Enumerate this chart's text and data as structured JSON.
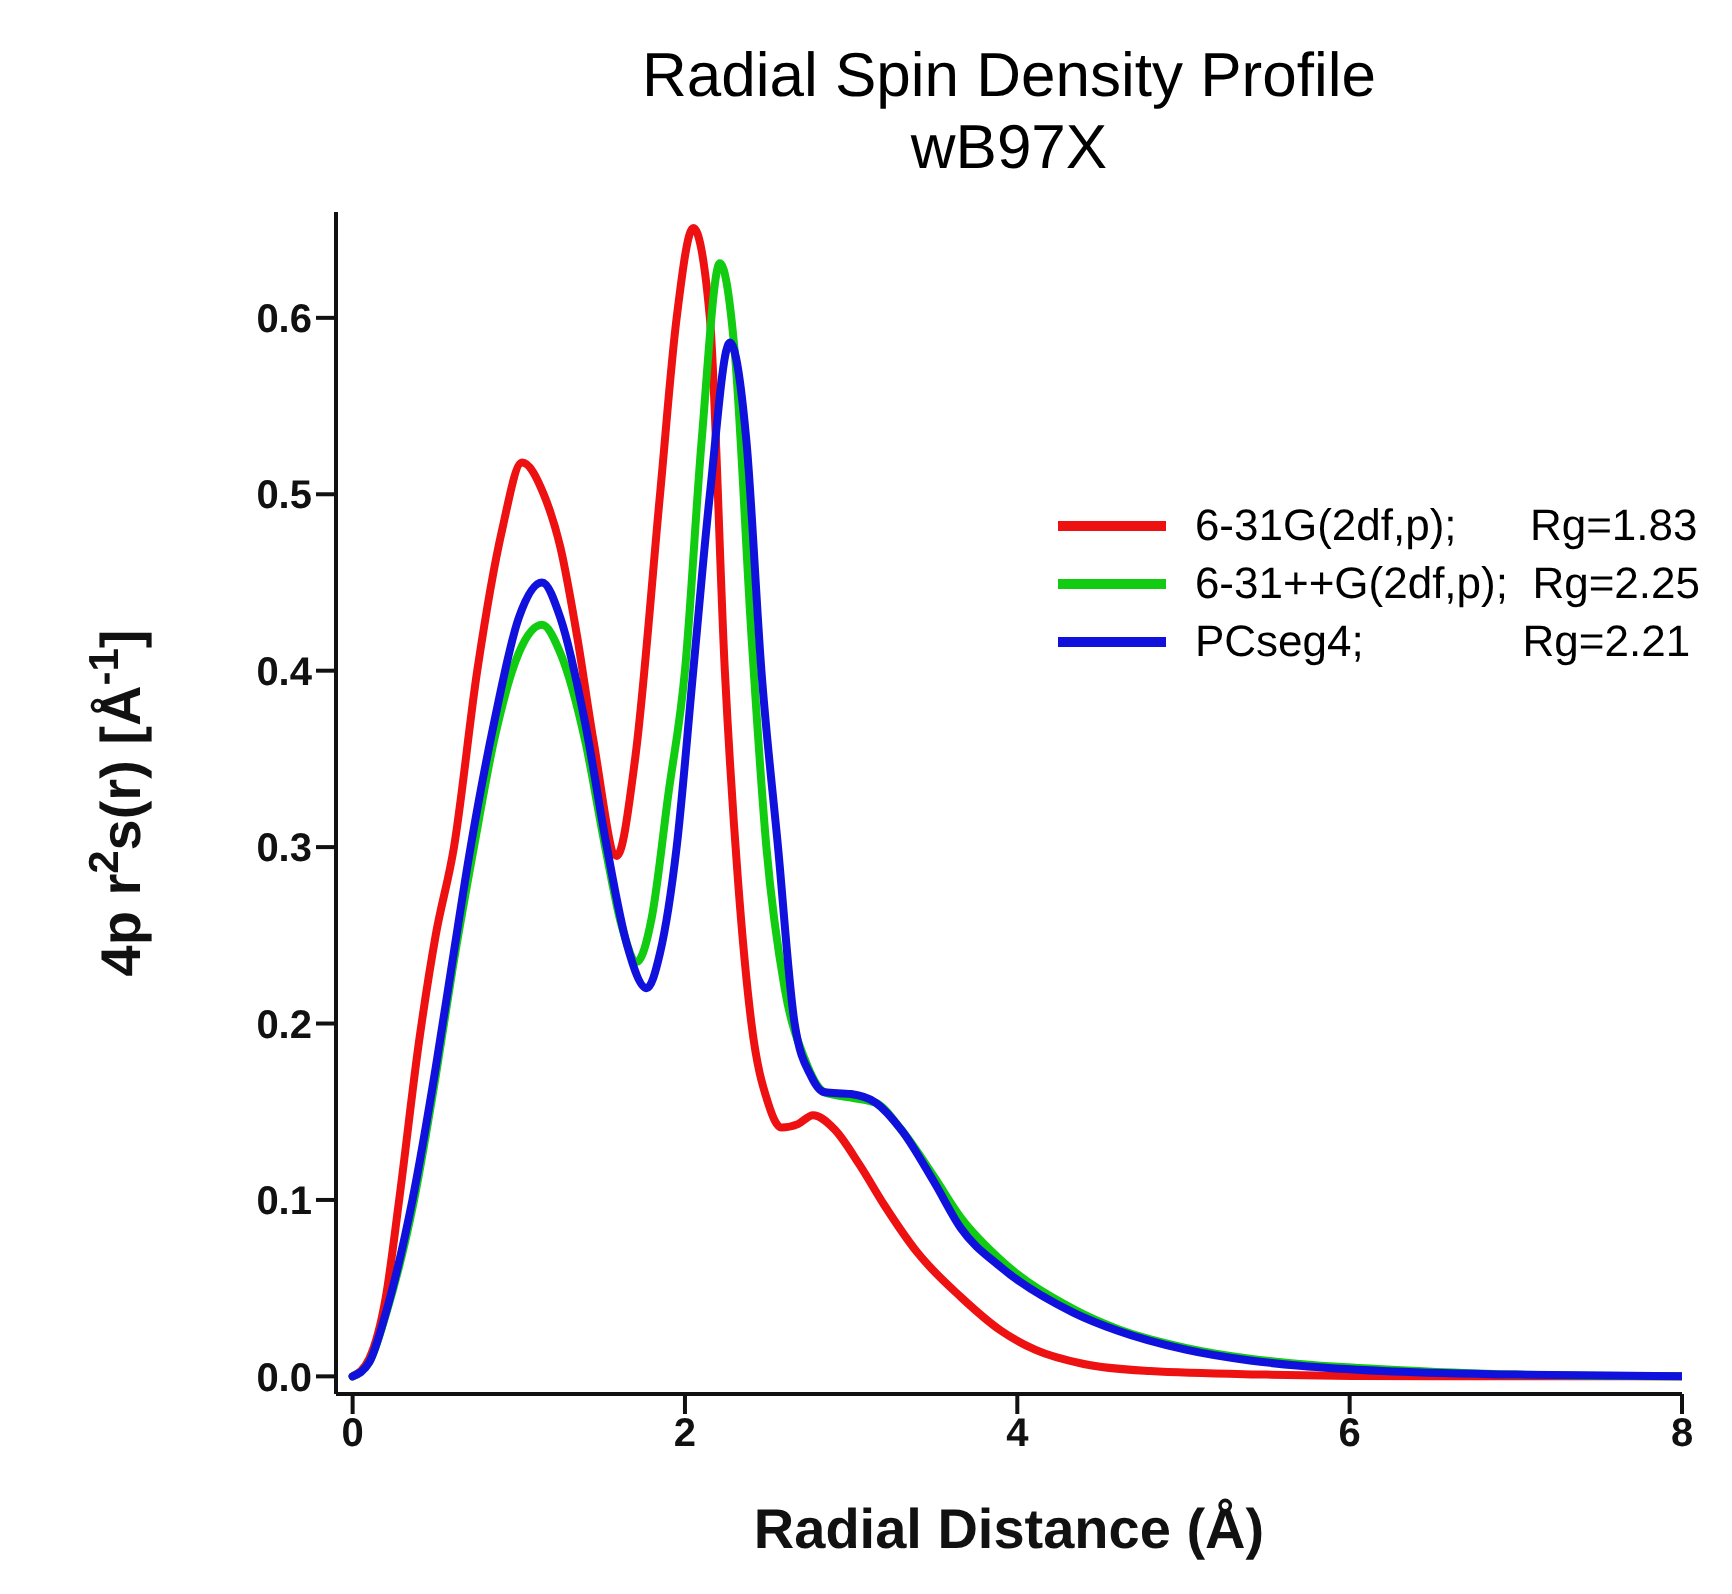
{
  "chart_data": {
    "type": "line",
    "title": "Radial Spin Density Profile",
    "subtitle": "wB97X",
    "xlabel": "Radial Distance (Å)",
    "ylabel": "4p r$^{2}$s(r) [Å$^{-1}$]",
    "xlim": [
      -0.1,
      8
    ],
    "xticks": [
      0,
      2,
      4,
      6,
      8
    ],
    "ylim": [
      -0.01,
      0.66
    ],
    "yticks": [
      {
        "value": 0,
        "label": "0.0"
      },
      0.1,
      0.2,
      0.3,
      0.4,
      0.5,
      0.6
    ],
    "legend": "right",
    "marker": "none",
    "line_style": "solid",
    "series": [
      {
        "name": "6-31G(2df,p);      Rg=1.83",
        "color": "#ee1111",
        "x": [
          0,
          0.1,
          0.2,
          0.28,
          0.4,
          0.5,
          0.61,
          0.75,
          0.9,
          1.02,
          1.15,
          1.25,
          1.35,
          1.45,
          1.59,
          1.7,
          1.85,
          1.95,
          2.05,
          2.15,
          2.24,
          2.32,
          2.4,
          2.5,
          2.58,
          2.68,
          2.77,
          2.9,
          3.05,
          3.2,
          3.4,
          3.66,
          3.9,
          4.11,
          4.4,
          4.8,
          5.5,
          6.5,
          8
        ],
        "values": [
          0,
          0.01,
          0.045,
          0.1,
          0.19,
          0.25,
          0.3,
          0.4,
          0.48,
          0.518,
          0.5,
          0.47,
          0.42,
          0.36,
          0.295,
          0.35,
          0.5,
          0.6,
          0.651,
          0.6,
          0.4,
          0.28,
          0.2,
          0.155,
          0.141,
          0.143,
          0.148,
          0.14,
          0.12,
          0.097,
          0.07,
          0.045,
          0.026,
          0.015,
          0.007,
          0.003,
          0.001,
          0,
          0
        ]
      },
      {
        "name": "6-31++G(2df,p);  Rg=2.25",
        "color": "#11cc11",
        "x": [
          0,
          0.1,
          0.2,
          0.37,
          0.5,
          0.6,
          0.73,
          0.85,
          1.0,
          1.14,
          1.25,
          1.4,
          1.52,
          1.62,
          1.71,
          1.8,
          1.9,
          2.0,
          2.1,
          2.21,
          2.3,
          2.4,
          2.49,
          2.6,
          2.72,
          2.84,
          3.0,
          3.15,
          3.3,
          3.5,
          3.66,
          3.9,
          4.34,
          4.6,
          5.02,
          5.4,
          5.7,
          6.2,
          7,
          8
        ],
        "values": [
          0,
          0.008,
          0.035,
          0.1,
          0.17,
          0.23,
          0.3,
          0.36,
          0.41,
          0.426,
          0.41,
          0.36,
          0.3,
          0.255,
          0.235,
          0.26,
          0.33,
          0.4,
          0.53,
          0.631,
          0.58,
          0.42,
          0.3,
          0.22,
          0.18,
          0.161,
          0.158,
          0.155,
          0.14,
          0.113,
          0.09,
          0.066,
          0.038,
          0.027,
          0.016,
          0.01,
          0.007,
          0.004,
          0.001,
          0
        ]
      },
      {
        "name": "PCseg4;             Rg=2.21",
        "color": "#1111dd",
        "x": [
          0,
          0.1,
          0.2,
          0.36,
          0.5,
          0.6,
          0.71,
          0.85,
          1.0,
          1.14,
          1.25,
          1.4,
          1.53,
          1.65,
          1.77,
          1.85,
          1.95,
          2.05,
          2.15,
          2.27,
          2.37,
          2.46,
          2.56,
          2.66,
          2.76,
          2.84,
          3.0,
          3.15,
          3.3,
          3.5,
          3.66,
          3.9,
          4.34,
          4.6,
          5.02,
          5.4,
          5.7,
          6.2,
          7,
          8
        ],
        "values": [
          0,
          0.008,
          0.036,
          0.1,
          0.175,
          0.235,
          0.3,
          0.37,
          0.43,
          0.45,
          0.43,
          0.37,
          0.3,
          0.245,
          0.22,
          0.24,
          0.3,
          0.4,
          0.5,
          0.586,
          0.53,
          0.4,
          0.3,
          0.2,
          0.17,
          0.161,
          0.16,
          0.155,
          0.14,
          0.11,
          0.084,
          0.062,
          0.036,
          0.026,
          0.015,
          0.009,
          0.006,
          0.003,
          0.001,
          0
        ]
      }
    ]
  }
}
